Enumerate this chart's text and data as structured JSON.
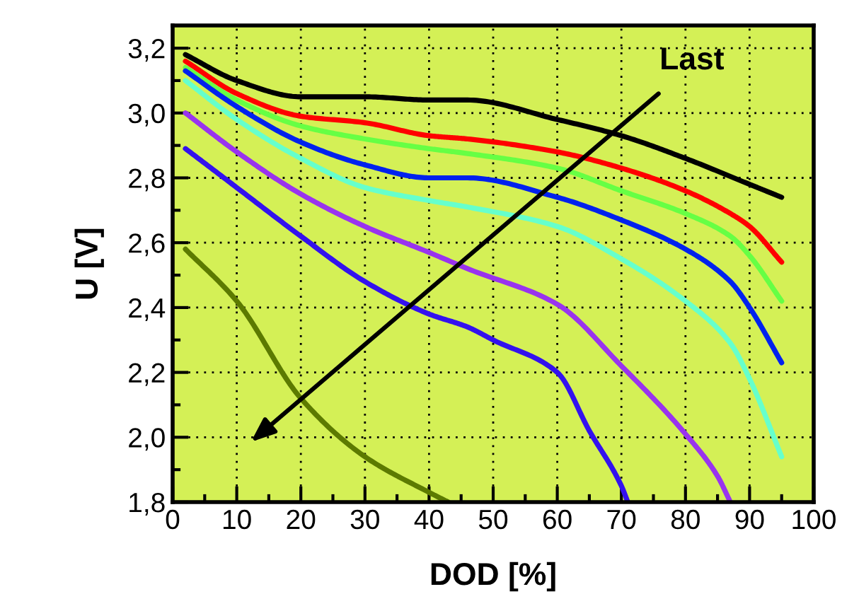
{
  "chart_data": {
    "type": "line",
    "xlabel": "DOD [%]",
    "ylabel": "U [V]",
    "series": [
      {
        "color": "#000000",
        "x": [
          2,
          10,
          20,
          30,
          40,
          46,
          60,
          70,
          80,
          90,
          95
        ],
        "values": [
          3.18,
          3.1,
          3.05,
          3.05,
          3.04,
          3.04,
          2.98,
          2.93,
          2.86,
          2.78,
          2.74
        ]
      },
      {
        "color": "#ff0000",
        "x": [
          2,
          10,
          20,
          30,
          40,
          46,
          60,
          70,
          80,
          87,
          90,
          95
        ],
        "values": [
          3.16,
          3.06,
          2.99,
          2.97,
          2.93,
          2.92,
          2.88,
          2.83,
          2.76,
          2.69,
          2.65,
          2.54
        ]
      },
      {
        "color": "#66ff44",
        "x": [
          2,
          10,
          20,
          30,
          40,
          46,
          60,
          70,
          80,
          87,
          90,
          95
        ],
        "values": [
          3.14,
          3.04,
          2.96,
          2.92,
          2.89,
          2.875,
          2.83,
          2.76,
          2.69,
          2.62,
          2.56,
          2.42
        ]
      },
      {
        "color": "#0022ee",
        "x": [
          2,
          10,
          20,
          30,
          40,
          46,
          60,
          70,
          80,
          87,
          90,
          95
        ],
        "values": [
          3.13,
          3.02,
          2.91,
          2.84,
          2.8,
          2.8,
          2.74,
          2.67,
          2.58,
          2.48,
          2.4,
          2.23
        ]
      },
      {
        "color": "#66ffcc",
        "x": [
          2,
          10,
          20,
          30,
          40,
          46,
          60,
          70,
          80,
          87,
          90,
          95
        ],
        "values": [
          3.1,
          2.98,
          2.86,
          2.77,
          2.73,
          2.71,
          2.65,
          2.55,
          2.42,
          2.29,
          2.18,
          1.94
        ]
      },
      {
        "color": "#9933ee",
        "x": [
          2,
          10,
          20,
          30,
          40,
          46,
          60,
          70,
          80,
          85,
          87
        ],
        "values": [
          3.0,
          2.88,
          2.75,
          2.65,
          2.57,
          2.52,
          2.41,
          2.22,
          2.01,
          1.88,
          1.8
        ]
      },
      {
        "color": "#3311ee",
        "x": [
          2,
          10,
          20,
          30,
          40,
          46,
          50,
          60,
          65,
          70,
          71
        ],
        "values": [
          2.89,
          2.77,
          2.62,
          2.48,
          2.38,
          2.34,
          2.3,
          2.2,
          2.02,
          1.85,
          1.8
        ]
      },
      {
        "color": "#5c7a00",
        "x": [
          2,
          10,
          20,
          30,
          40,
          43
        ],
        "values": [
          2.58,
          2.42,
          2.12,
          1.94,
          1.83,
          1.8
        ]
      }
    ],
    "annotations": [
      "Last"
    ],
    "xlim": [
      0,
      100
    ],
    "ylim": [
      1.8,
      3.27
    ],
    "xticks": [
      0,
      {
        "value": 5,
        "label": null
      },
      10,
      {
        "value": 15,
        "label": null
      },
      20,
      {
        "value": 25,
        "label": null
      },
      30,
      {
        "value": 35,
        "label": null
      },
      40,
      {
        "value": 45,
        "label": null
      },
      50,
      {
        "value": 55,
        "label": null
      },
      60,
      {
        "value": 65,
        "label": null
      },
      70,
      {
        "value": 75,
        "label": null
      },
      80,
      {
        "value": 85,
        "label": null
      },
      90,
      {
        "value": 95,
        "label": null
      },
      100
    ],
    "yticks": [
      {
        "value": 1.8,
        "label": "1,8"
      },
      {
        "value": 1.9,
        "label": null
      },
      {
        "value": 2.0,
        "label": "2,0"
      },
      {
        "value": 2.1,
        "label": null
      },
      {
        "value": 2.2,
        "label": "2,2"
      },
      {
        "value": 2.3,
        "label": null
      },
      {
        "value": 2.4,
        "label": "2,4"
      },
      {
        "value": 2.5,
        "label": null
      },
      {
        "value": 2.6,
        "label": "2,6"
      },
      {
        "value": 2.7,
        "label": null
      },
      {
        "value": 2.8,
        "label": "2,8"
      },
      {
        "value": 2.9,
        "label": null
      },
      {
        "value": 3.0,
        "label": "3,0"
      },
      {
        "value": 3.1,
        "label": null
      },
      {
        "value": 3.2,
        "label": "3,2"
      }
    ],
    "grid": true,
    "legend": false,
    "marker": "none",
    "line_style": "solid"
  }
}
